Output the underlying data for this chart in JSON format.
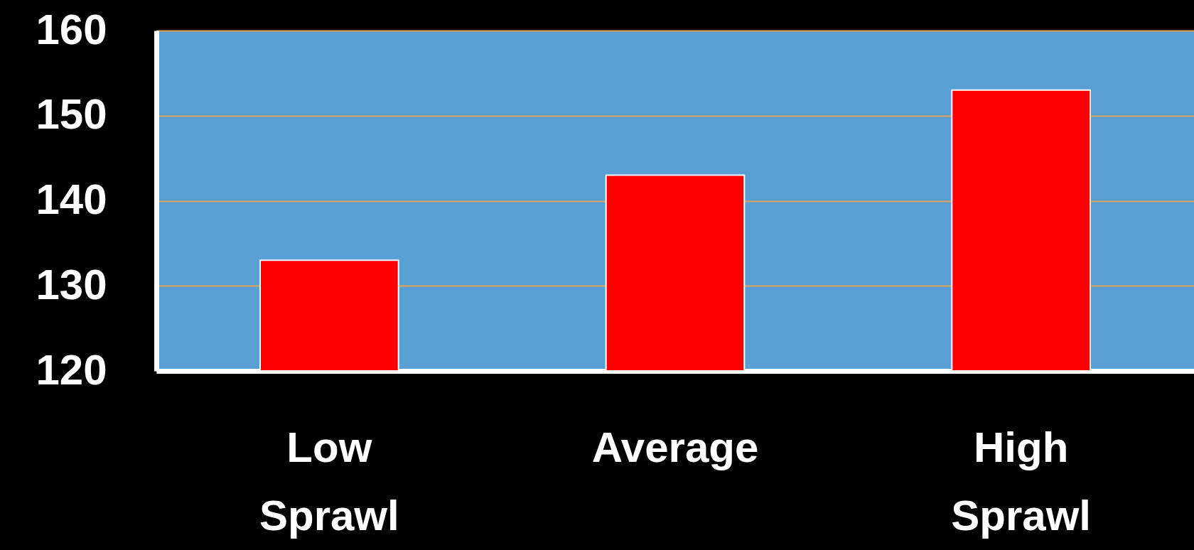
{
  "chart_data": {
    "type": "bar",
    "categories": [
      "Low Sprawl",
      "Average",
      "High Sprawl"
    ],
    "values": [
      133,
      143,
      153
    ],
    "color": "#ff0000",
    "ylim": [
      120,
      160
    ],
    "yticks": [
      120,
      130,
      140,
      150,
      160
    ],
    "grid": "y"
  }
}
